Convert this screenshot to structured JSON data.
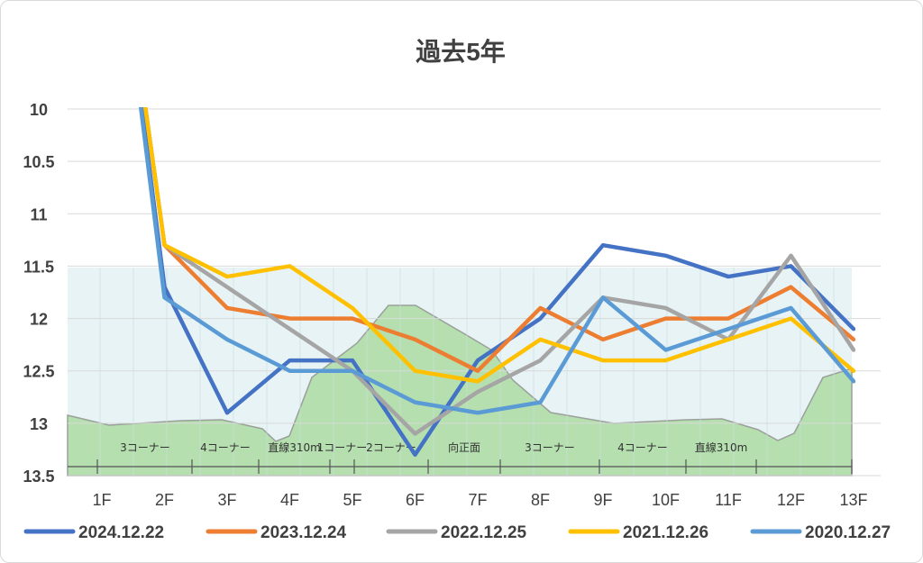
{
  "chart_data": {
    "type": "line",
    "title": "過去5年",
    "xlabel": "",
    "ylabel": "",
    "categories": [
      "1F",
      "2F",
      "3F",
      "4F",
      "5F",
      "6F",
      "7F",
      "8F",
      "9F",
      "10F",
      "11F",
      "12F",
      "13F"
    ],
    "y_ticks": [
      "10",
      "10.5",
      "11",
      "11.5",
      "12",
      "12.5",
      "13",
      "13.5"
    ],
    "ylim": [
      10,
      13.5
    ],
    "y_reversed": true,
    "grid": true,
    "legend_position": "bottom",
    "series": [
      {
        "name": "2024.12.22",
        "color": "#4472C4",
        "values": [
          7.0,
          11.7,
          12.9,
          12.4,
          12.4,
          13.3,
          12.4,
          12.0,
          11.3,
          11.4,
          11.6,
          11.5,
          12.1
        ]
      },
      {
        "name": "2023.12.24",
        "color": "#ED7D31",
        "values": [
          7.0,
          11.3,
          11.9,
          12.0,
          12.0,
          12.2,
          12.5,
          11.9,
          12.2,
          12.0,
          12.0,
          11.7,
          12.2
        ]
      },
      {
        "name": "2022.12.25",
        "color": "#A5A5A5",
        "values": [
          7.0,
          11.3,
          11.7,
          12.1,
          12.5,
          13.1,
          12.7,
          12.4,
          11.8,
          11.9,
          12.2,
          11.4,
          12.3
        ]
      },
      {
        "name": "2021.12.26",
        "color": "#FFC000",
        "values": [
          7.0,
          11.3,
          11.6,
          11.5,
          11.9,
          12.5,
          12.6,
          12.2,
          12.4,
          12.4,
          12.2,
          12.0,
          12.5
        ]
      },
      {
        "name": "2020.12.27",
        "color": "#5B9BD5",
        "values": [
          7.0,
          11.8,
          12.2,
          12.5,
          12.5,
          12.8,
          12.9,
          12.8,
          11.8,
          12.3,
          12.1,
          11.9,
          12.6
        ]
      }
    ],
    "course_sections": [
      "3コーナー",
      "4コーナー",
      "直線310m",
      "1コーナー",
      "2コーナー",
      "向正面",
      "3コーナー",
      "4コーナー",
      "直線310m"
    ]
  },
  "colors": {
    "panel_fill": "#E8F3F5",
    "hill_fill": "#B5DFAE",
    "grid": "#d9d9d9"
  }
}
